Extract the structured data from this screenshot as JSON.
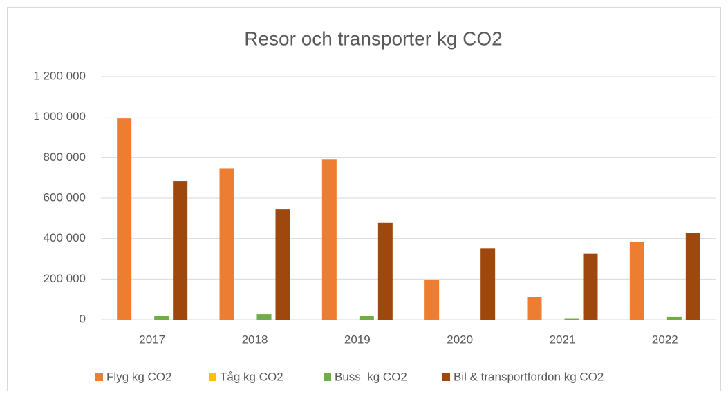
{
  "chart_data": {
    "type": "bar",
    "title": "Resor och transporter kg CO2",
    "categories": [
      "2017",
      "2018",
      "2019",
      "2020",
      "2021",
      "2022"
    ],
    "series": [
      {
        "name": "Flyg kg CO2",
        "color": "#ed7d31",
        "values": [
          995000,
          745000,
          790000,
          195000,
          110000,
          385000
        ]
      },
      {
        "name": "Tåg kg CO2",
        "color": "#ffc000",
        "values": [
          0,
          0,
          0,
          0,
          0,
          0
        ]
      },
      {
        "name": "Buss  kg CO2",
        "color": "#70ad47",
        "values": [
          17000,
          27000,
          17000,
          0,
          5000,
          14000
        ]
      },
      {
        "name": "Bil & transportfordon kg CO2",
        "color": "#9e480e",
        "values": [
          685000,
          545000,
          478000,
          350000,
          325000,
          427000
        ]
      }
    ],
    "ylim": [
      0,
      1200000
    ],
    "yticks": [
      0,
      {
        "value": 200000,
        "label": "200 000"
      },
      {
        "value": 400000,
        "label": "400 000"
      },
      {
        "value": 600000,
        "label": "600 000"
      },
      {
        "value": 800000,
        "label": "800 000"
      },
      {
        "value": 1000000,
        "label": "1 000 000"
      },
      {
        "value": 1200000,
        "label": "1 200 000"
      }
    ],
    "grid": true,
    "legend": "bottom"
  }
}
